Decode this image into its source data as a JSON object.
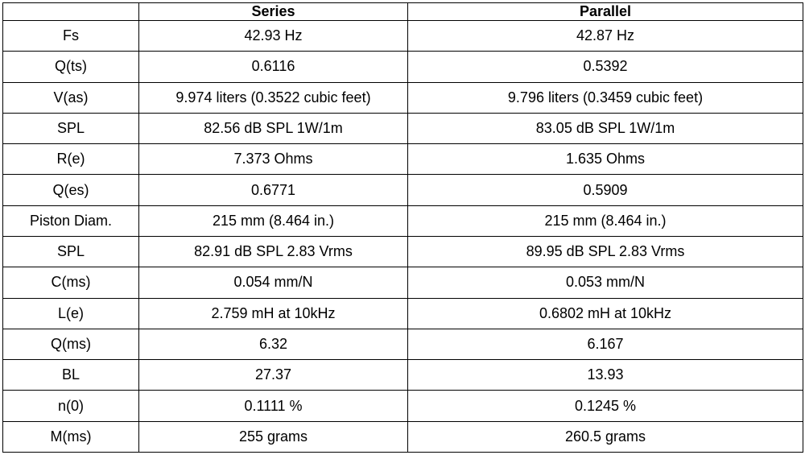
{
  "table": {
    "headers": [
      "",
      "Series",
      "Parallel"
    ],
    "rows": [
      {
        "parameter": "Fs",
        "series": "42.93 Hz",
        "parallel": "42.87 Hz"
      },
      {
        "parameter": "Q(ts)",
        "series": "0.6116",
        "parallel": "0.5392"
      },
      {
        "parameter": "V(as)",
        "series": "9.974 liters (0.3522 cubic feet)",
        "parallel": "9.796 liters (0.3459 cubic feet)"
      },
      {
        "parameter": "SPL",
        "series": "82.56 dB SPL 1W/1m",
        "parallel": "83.05 dB SPL 1W/1m"
      },
      {
        "parameter": "R(e)",
        "series": "7.373 Ohms",
        "parallel": "1.635 Ohms"
      },
      {
        "parameter": "Q(es)",
        "series": "0.6771",
        "parallel": "0.5909"
      },
      {
        "parameter": "Piston Diam.",
        "series": "215 mm (8.464 in.)",
        "parallel": "215 mm (8.464 in.)"
      },
      {
        "parameter": "SPL",
        "series": "82.91 dB SPL 2.83 Vrms",
        "parallel": "89.95 dB SPL 2.83 Vrms"
      },
      {
        "parameter": "C(ms)",
        "series": "0.054 mm/N",
        "parallel": "0.053 mm/N"
      },
      {
        "parameter": "L(e)",
        "series": "2.759 mH at 10kHz",
        "parallel": "0.6802 mH at 10kHz"
      },
      {
        "parameter": "Q(ms)",
        "series": "6.32",
        "parallel": "6.167"
      },
      {
        "parameter": "BL",
        "series": "27.37",
        "parallel": "13.93"
      },
      {
        "parameter": "n(0)",
        "series": "0.1111 %",
        "parallel": "0.1245 %"
      },
      {
        "parameter": "M(ms)",
        "series": "255 grams",
        "parallel": "260.5 grams"
      }
    ]
  }
}
